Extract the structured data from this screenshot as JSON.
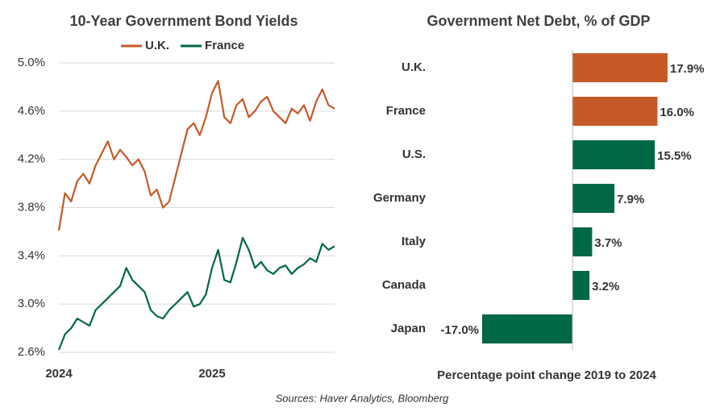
{
  "chart_data": [
    {
      "type": "line",
      "title": "10-Year Government Bond Yields",
      "x": [
        2024,
        2024.04,
        2024.08,
        2024.12,
        2024.16,
        2024.2,
        2024.24,
        2024.28,
        2024.32,
        2024.36,
        2024.4,
        2024.44,
        2024.48,
        2024.52,
        2024.56,
        2024.6,
        2024.64,
        2024.68,
        2024.72,
        2024.76,
        2024.8,
        2024.84,
        2024.88,
        2024.92,
        2024.96,
        2025,
        2025.04,
        2025.08,
        2025.12,
        2025.16,
        2025.2,
        2025.24,
        2025.28,
        2025.32,
        2025.36,
        2025.4,
        2025.44,
        2025.48,
        2025.52,
        2025.56,
        2025.6,
        2025.64,
        2025.68,
        2025.72,
        2025.76,
        2025.8
      ],
      "series": [
        {
          "name": "U.K.",
          "color": "#c55a28",
          "values": [
            3.61,
            3.92,
            3.85,
            4.02,
            4.08,
            4.0,
            4.15,
            4.25,
            4.35,
            4.2,
            4.28,
            4.22,
            4.15,
            4.2,
            4.1,
            3.9,
            3.95,
            3.8,
            3.85,
            4.05,
            4.25,
            4.45,
            4.5,
            4.4,
            4.55,
            4.75,
            4.85,
            4.55,
            4.5,
            4.65,
            4.7,
            4.55,
            4.6,
            4.68,
            4.72,
            4.6,
            4.55,
            4.5,
            4.62,
            4.58,
            4.65,
            4.52,
            4.68,
            4.78,
            4.65,
            4.62
          ]
        },
        {
          "name": "France",
          "color": "#006747",
          "values": [
            2.62,
            2.75,
            2.8,
            2.88,
            2.85,
            2.82,
            2.95,
            3.0,
            3.05,
            3.1,
            3.15,
            3.3,
            3.2,
            3.15,
            3.1,
            2.95,
            2.9,
            2.88,
            2.95,
            3.0,
            3.05,
            3.1,
            2.98,
            3.0,
            3.08,
            3.3,
            3.45,
            3.2,
            3.18,
            3.35,
            3.55,
            3.45,
            3.3,
            3.35,
            3.28,
            3.25,
            3.3,
            3.32,
            3.25,
            3.3,
            3.33,
            3.38,
            3.35,
            3.5,
            3.45,
            3.48
          ]
        }
      ],
      "xlim": [
        2024,
        2025.8
      ],
      "xticks": [
        2024,
        2025
      ],
      "ylim": [
        2.6,
        5.0
      ],
      "yticks": [
        {
          "value": 2.6,
          "label": "2.6%"
        },
        {
          "value": 3.0,
          "label": "3.0%"
        },
        {
          "value": 3.4,
          "label": "3.4%"
        },
        {
          "value": 3.8,
          "label": "3.8%"
        },
        {
          "value": 4.2,
          "label": "4.2%"
        },
        {
          "value": 4.6,
          "label": "4.6%"
        },
        {
          "value": 5.0,
          "label": "5.0%"
        }
      ],
      "grid": true
    },
    {
      "type": "hbar",
      "title": "Government Net Debt, % of GDP",
      "categories": [
        "U.K.",
        "France",
        "U.S.",
        "Germany",
        "Italy",
        "Canada",
        "Japan"
      ],
      "values": [
        17.9,
        16.0,
        15.5,
        7.9,
        3.7,
        3.2,
        -17.0
      ],
      "value_labels": [
        "17.9%",
        "16.0%",
        "15.5%",
        "7.9%",
        "3.7%",
        "3.2%",
        "-17.0%"
      ],
      "colors": [
        "#c55a28",
        "#c55a28",
        "#006747",
        "#006747",
        "#006747",
        "#006747",
        "#006747"
      ],
      "xlim": [
        -17.0,
        17.9
      ],
      "xlabel": "Percentage point change 2019 to 2024"
    }
  ],
  "source": "Sources: Haver Analytics, Bloomberg"
}
